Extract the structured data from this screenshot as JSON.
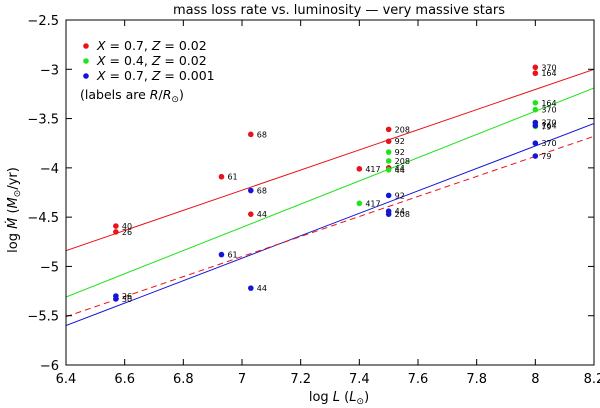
{
  "chart_data": {
    "type": "scatter",
    "title": "mass loss rate vs. luminosity — very massive stars",
    "xlabel_parts": [
      "log ",
      "L",
      " (",
      "L",
      "⊙",
      ")"
    ],
    "ylabel_parts": [
      "log ",
      "Ṁ",
      " (",
      "M",
      "⊙",
      "/yr)"
    ],
    "xlim": [
      6.4,
      8.2
    ],
    "ylim": [
      -6,
      -2.5
    ],
    "xticks": [
      6.4,
      6.6,
      6.8,
      7,
      7.2,
      7.4,
      7.6,
      7.8,
      8,
      8.2
    ],
    "yticks": [
      -6,
      -5.5,
      -5,
      -4.5,
      -4,
      -3.5,
      -3,
      -2.5
    ],
    "xtick_labels": [
      "6.4",
      "6.6",
      "6.8",
      "7",
      "7.2",
      "7.4",
      "7.6",
      "7.8",
      "8",
      "8.2"
    ],
    "ytick_labels": [
      "−6",
      "−5.5",
      "−5",
      "−4.5",
      "−4",
      "−3.5",
      "−3",
      "−2.5"
    ],
    "legend": {
      "entries": [
        {
          "X": "X",
          "Xval": " = 0.7, ",
          "Z": "Z",
          "Zval": " = 0.02"
        },
        {
          "X": "X",
          "Xval": " = 0.4, ",
          "Z": "Z",
          "Zval": " = 0.02"
        },
        {
          "X": "X",
          "Xval": " = 0.7, ",
          "Z": "Z",
          "Zval": " = 0.001"
        }
      ],
      "note_parts": [
        "(labels are ",
        "R",
        "/",
        "R",
        "⊙",
        ")"
      ]
    },
    "series": [
      {
        "name": "X = 0.7, Z = 0.02",
        "color": "#e8141a",
        "points": [
          {
            "x": 6.57,
            "y": -4.59,
            "label": "40"
          },
          {
            "x": 6.57,
            "y": -4.65,
            "label": "26"
          },
          {
            "x": 6.93,
            "y": -4.09,
            "label": "61"
          },
          {
            "x": 7.03,
            "y": -3.66,
            "label": "68"
          },
          {
            "x": 7.03,
            "y": -4.47,
            "label": "44"
          },
          {
            "x": 7.4,
            "y": -4.01,
            "label": "417"
          },
          {
            "x": 7.5,
            "y": -3.61,
            "label": "208"
          },
          {
            "x": 7.5,
            "y": -3.73,
            "label": "92"
          },
          {
            "x": 7.5,
            "y": -4.0,
            "label": "44"
          },
          {
            "x": 8.0,
            "y": -2.98,
            "label": "370"
          },
          {
            "x": 8.0,
            "y": -3.04,
            "label": "164"
          }
        ],
        "fit": {
          "x": [
            6.4,
            8.2
          ],
          "y": [
            -4.84,
            -3.0
          ],
          "dash": false
        }
      },
      {
        "name": "X = 0.4, Z = 0.02",
        "color": "#22e21e",
        "points": [
          {
            "x": 7.4,
            "y": -4.36,
            "label": "417"
          },
          {
            "x": 7.5,
            "y": -3.84,
            "label": "92"
          },
          {
            "x": 7.5,
            "y": -3.93,
            "label": "208"
          },
          {
            "x": 7.5,
            "y": -4.02,
            "label": "44"
          },
          {
            "x": 8.0,
            "y": -3.34,
            "label": "164"
          },
          {
            "x": 8.0,
            "y": -3.41,
            "label": "370"
          },
          {
            "x": 8.0,
            "y": -3.58,
            "label": "79"
          }
        ],
        "fit": {
          "x": [
            6.4,
            8.2
          ],
          "y": [
            -5.31,
            -3.19
          ],
          "dash": false
        }
      },
      {
        "name": "X = 0.7, Z = 0.001",
        "color": "#1515d8",
        "points": [
          {
            "x": 6.57,
            "y": -5.3,
            "label": "26"
          },
          {
            "x": 6.57,
            "y": -5.33,
            "label": "30"
          },
          {
            "x": 6.93,
            "y": -4.88,
            "label": "61"
          },
          {
            "x": 7.03,
            "y": -4.23,
            "label": "68"
          },
          {
            "x": 7.03,
            "y": -5.22,
            "label": "44"
          },
          {
            "x": 7.5,
            "y": -4.28,
            "label": "92"
          },
          {
            "x": 7.5,
            "y": -4.44,
            "label": "44"
          },
          {
            "x": 7.5,
            "y": -4.47,
            "label": "208"
          },
          {
            "x": 8.0,
            "y": -3.54,
            "label": "370"
          },
          {
            "x": 8.0,
            "y": -3.57,
            "label": "164"
          },
          {
            "x": 8.0,
            "y": -3.75,
            "label": "370"
          },
          {
            "x": 8.0,
            "y": -3.88,
            "label": "79"
          }
        ],
        "fit": {
          "x": [
            6.4,
            8.2
          ],
          "y": [
            -5.6,
            -3.55
          ],
          "dash": false
        }
      }
    ],
    "extra_lines": [
      {
        "name": "dashed fit",
        "color": "#e8141a",
        "x": [
          6.4,
          8.2
        ],
        "y": [
          -5.51,
          -3.68
        ],
        "dash": true
      }
    ]
  }
}
